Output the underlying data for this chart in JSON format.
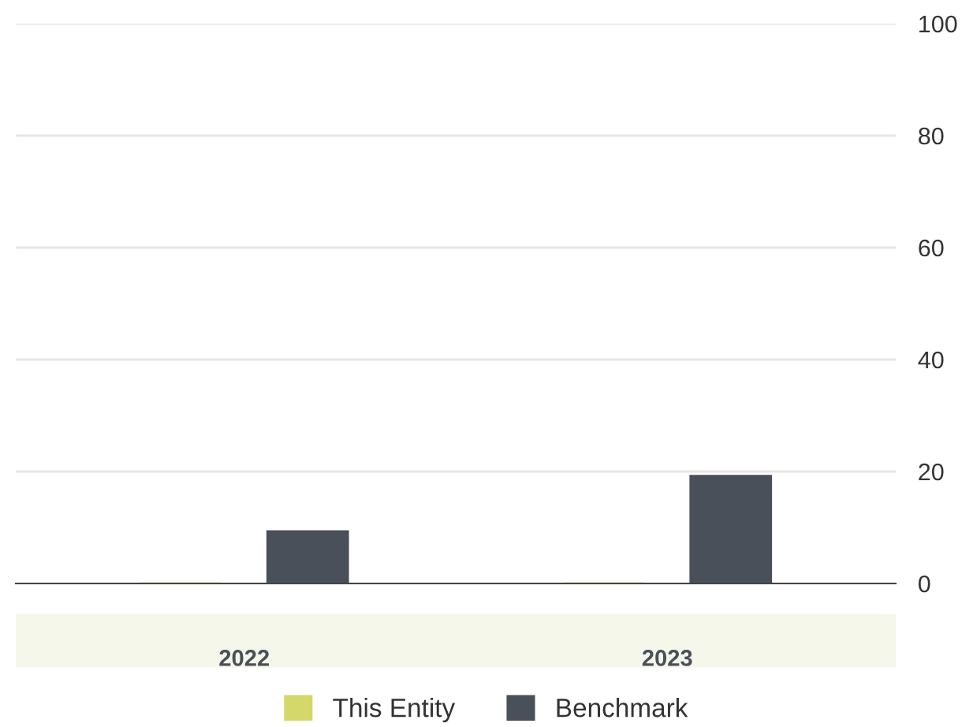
{
  "chart_data": {
    "type": "bar",
    "categories": [
      "2022",
      "2023"
    ],
    "series": [
      {
        "name": "This Entity",
        "color": "#d4d86a",
        "values": [
          0,
          0
        ]
      },
      {
        "name": "Benchmark",
        "color": "#4a5059",
        "values": [
          9.3,
          19.2
        ]
      }
    ],
    "ylim": [
      0,
      100
    ],
    "yticks": [
      0,
      20,
      40,
      60,
      80,
      100
    ],
    "grid": "y",
    "legend": "bottom"
  }
}
